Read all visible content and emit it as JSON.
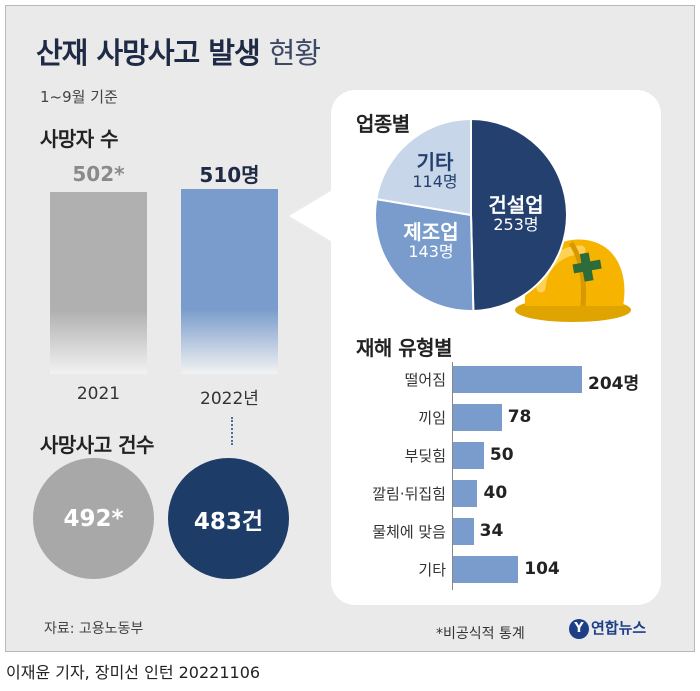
{
  "header": {
    "title": "산재 사망사고 발생",
    "title_suffix": "현황",
    "subtitle": "1~9월 기준"
  },
  "chart_data": [
    {
      "type": "bar",
      "title": "사망자 수",
      "categories": [
        "2021",
        "2022년"
      ],
      "values": [
        502,
        510
      ],
      "value_labels": [
        "502*",
        "510명"
      ],
      "colors": [
        "#b0b0b0",
        "#7a9ccc"
      ]
    },
    {
      "type": "bubble",
      "title": "사망사고 건수",
      "categories": [
        "2021",
        "2022"
      ],
      "values": [
        492,
        483
      ],
      "value_labels": [
        "492*",
        "483건"
      ],
      "colors": [
        "#a8a8a8",
        "#1e3c68"
      ]
    },
    {
      "type": "pie",
      "title": "업종별",
      "slices": [
        {
          "name": "건설업",
          "value": 253,
          "label": "253명",
          "color": "#24406e"
        },
        {
          "name": "제조업",
          "value": 143,
          "label": "143명",
          "color": "#7a9ccc"
        },
        {
          "name": "기타",
          "value": 114,
          "label": "114명",
          "color": "#c8d6ea"
        }
      ]
    },
    {
      "type": "bar",
      "orientation": "horizontal",
      "title": "재해 유형별",
      "categories": [
        "떨어짐",
        "끼임",
        "부딪힘",
        "깔림·뒤집힘",
        "물체에 맞음",
        "기타"
      ],
      "values": [
        204,
        78,
        50,
        40,
        34,
        104
      ],
      "value_labels": [
        "204명",
        "78",
        "50",
        "40",
        "34",
        "104"
      ],
      "color": "#7a9ccc"
    }
  ],
  "footer": {
    "source": "자료: 고용노동부",
    "note": "*비공식적 통계",
    "brand": "연합뉴스",
    "brand_logo": "Y",
    "credit": "이재윤 기자, 장미선 인턴  20221106"
  },
  "icons": {
    "hardhat": "hardhat-icon"
  }
}
